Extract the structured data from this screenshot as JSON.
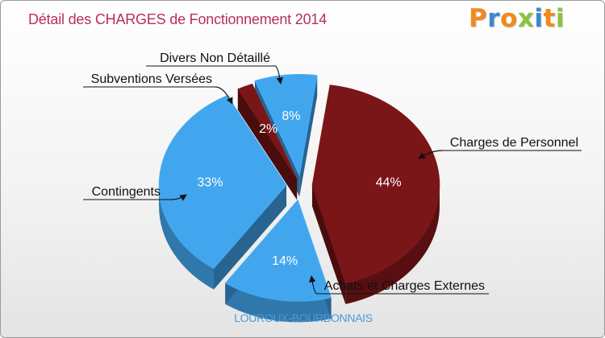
{
  "header": {
    "title": "Détail des CHARGES de Fonctionnement 2014",
    "logo_text": "Proxiti"
  },
  "footer": {
    "commune": "LOUROUX-BOURBONNAIS"
  },
  "colors": {
    "title": "#b5305a",
    "commune": "#4a9ad6",
    "blue_slice": "#42a6ee",
    "red_slice": "#7a1518"
  },
  "chart_data": {
    "type": "pie",
    "title": "Détail des CHARGES de Fonctionnement 2014",
    "unit": "%",
    "exploded": true,
    "three_d": true,
    "slices": [
      {
        "label": "Charges de Personnel",
        "value": 44,
        "display": "44%",
        "color": "#7a1518"
      },
      {
        "label": "Achats et Charges Externes",
        "value": 14,
        "display": "14%",
        "color": "#42a6ee"
      },
      {
        "label": "Contingents",
        "value": 33,
        "display": "33%",
        "color": "#42a6ee"
      },
      {
        "label": "Subventions Versées",
        "value": 2,
        "display": "2%",
        "color": "#7a1518"
      },
      {
        "label": "Divers Non Détaillé",
        "value": 8,
        "display": "8%",
        "color": "#42a6ee"
      }
    ]
  }
}
